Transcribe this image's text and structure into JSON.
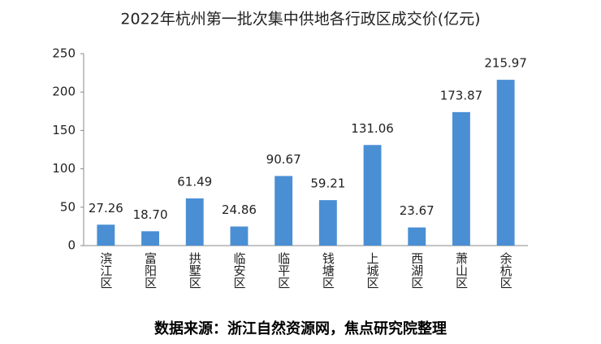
{
  "chart_data": {
    "type": "bar",
    "title": "2022年杭州第一批次集中供地各行政区成交价(亿元)",
    "categories": [
      "滨江区",
      "富阳区",
      "拱墅区",
      "临安区",
      "临平区",
      "钱塘区",
      "上城区",
      "西湖区",
      "萧山区",
      "余杭区"
    ],
    "values": [
      27.26,
      18.7,
      61.49,
      24.86,
      90.67,
      59.21,
      131.06,
      23.67,
      173.87,
      215.97
    ],
    "value_labels": [
      "27.26",
      "18.70",
      "61.49",
      "24.86",
      "90.67",
      "59.21",
      "131.06",
      "23.67",
      "173.87",
      "215.97"
    ],
    "color": "#4a8fd4",
    "ylim": [
      0,
      250
    ],
    "yticks": [
      0,
      50,
      100,
      150,
      200,
      250
    ],
    "grid": false,
    "source": "数据来源：浙江自然资源网，焦点研究院整理"
  }
}
